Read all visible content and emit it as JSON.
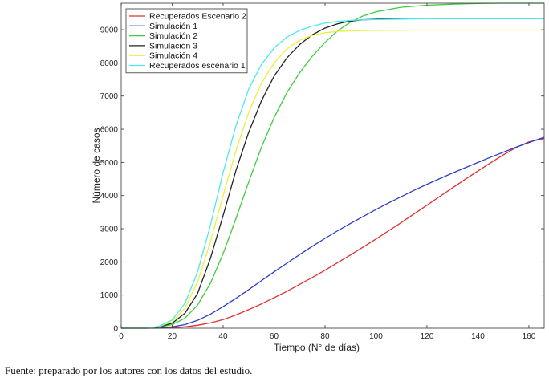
{
  "caption": "Fuente: preparado por los autores con los datos del estudio.",
  "chart_data": {
    "type": "line",
    "title": "",
    "xlabel": "Tiempo (N° de días)",
    "ylabel": "Número de casos",
    "xlim": [
      0,
      166
    ],
    "ylim": [
      0,
      9800
    ],
    "x_ticks": [
      0,
      20,
      40,
      60,
      80,
      100,
      120,
      140,
      160
    ],
    "y_ticks": [
      0,
      1000,
      2000,
      3000,
      4000,
      5000,
      6000,
      7000,
      8000,
      9000
    ],
    "grid": false,
    "legend_position": "top-left",
    "series": [
      {
        "name": "Recuperados Escenario 2",
        "color": "#e03030",
        "x": [
          0,
          10,
          15,
          20,
          25,
          30,
          35,
          40,
          45,
          50,
          55,
          60,
          65,
          70,
          75,
          80,
          85,
          90,
          95,
          100,
          105,
          110,
          115,
          120,
          125,
          130,
          135,
          140,
          145,
          150,
          155,
          160,
          166
        ],
        "y": [
          0,
          0,
          5,
          15,
          40,
          90,
          160,
          260,
          400,
          560,
          730,
          920,
          1110,
          1320,
          1530,
          1750,
          1980,
          2210,
          2450,
          2690,
          2940,
          3190,
          3450,
          3710,
          3970,
          4230,
          4490,
          4740,
          4990,
          5230,
          5450,
          5620,
          5720
        ]
      },
      {
        "name": "Simulación 1",
        "color": "#2b3fc4",
        "x": [
          0,
          10,
          15,
          20,
          25,
          30,
          35,
          40,
          45,
          50,
          55,
          60,
          65,
          70,
          75,
          80,
          85,
          90,
          95,
          100,
          105,
          110,
          115,
          120,
          125,
          130,
          135,
          140,
          145,
          150,
          155,
          160,
          166
        ],
        "y": [
          0,
          0,
          10,
          40,
          110,
          240,
          420,
          650,
          900,
          1160,
          1430,
          1700,
          1960,
          2220,
          2470,
          2710,
          2940,
          3160,
          3370,
          3580,
          3780,
          3970,
          4160,
          4340,
          4510,
          4680,
          4840,
          5000,
          5160,
          5310,
          5460,
          5600,
          5760
        ]
      },
      {
        "name": "Simulación 2",
        "color": "#3ecc3e",
        "x": [
          0,
          10,
          15,
          20,
          25,
          30,
          35,
          40,
          45,
          50,
          55,
          60,
          65,
          70,
          75,
          80,
          85,
          90,
          95,
          100,
          110,
          120,
          130,
          140,
          150,
          166
        ],
        "y": [
          0,
          0,
          30,
          110,
          300,
          700,
          1350,
          2250,
          3300,
          4400,
          5450,
          6350,
          7100,
          7700,
          8200,
          8620,
          8970,
          9230,
          9420,
          9540,
          9680,
          9740,
          9770,
          9790,
          9800,
          9800
        ]
      },
      {
        "name": "Simulación 3",
        "color": "#222222",
        "x": [
          0,
          10,
          15,
          20,
          25,
          30,
          35,
          40,
          45,
          50,
          55,
          60,
          65,
          70,
          75,
          80,
          85,
          90,
          95,
          100,
          110,
          120,
          130,
          140,
          150,
          166
        ],
        "y": [
          0,
          0,
          40,
          150,
          450,
          1050,
          2100,
          3400,
          4750,
          5900,
          6850,
          7600,
          8150,
          8550,
          8850,
          9050,
          9180,
          9260,
          9300,
          9320,
          9340,
          9350,
          9350,
          9350,
          9350,
          9350
        ]
      },
      {
        "name": "Simulación 4",
        "color": "#f0ee38",
        "x": [
          0,
          10,
          15,
          20,
          25,
          30,
          35,
          40,
          45,
          50,
          55,
          60,
          65,
          70,
          75,
          80,
          85,
          90,
          100,
          110,
          120,
          130,
          140,
          150,
          166
        ],
        "y": [
          0,
          0,
          50,
          200,
          600,
          1400,
          2600,
          4000,
          5350,
          6500,
          7380,
          8000,
          8420,
          8680,
          8830,
          8910,
          8950,
          8970,
          8980,
          8985,
          8990,
          8990,
          8990,
          8990,
          8990
        ]
      },
      {
        "name": "Recuperados escenario 1",
        "color": "#4ee8e8",
        "x": [
          0,
          10,
          15,
          20,
          25,
          30,
          35,
          40,
          45,
          50,
          55,
          60,
          65,
          70,
          75,
          80,
          85,
          90,
          95,
          100,
          110,
          120,
          130,
          140,
          150,
          166
        ],
        "y": [
          0,
          0,
          60,
          250,
          750,
          1700,
          3100,
          4700,
          6100,
          7200,
          7950,
          8450,
          8780,
          8980,
          9110,
          9200,
          9250,
          9280,
          9300,
          9310,
          9320,
          9330,
          9330,
          9330,
          9330,
          9330
        ]
      }
    ]
  }
}
